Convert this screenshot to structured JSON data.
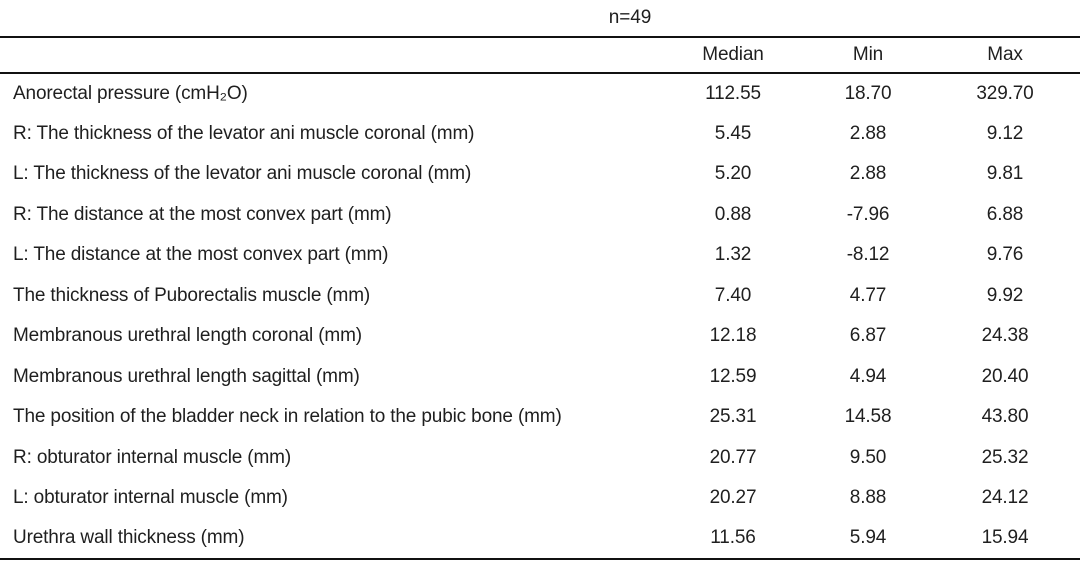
{
  "table": {
    "title": "n=49",
    "columns": [
      "Median",
      "Min",
      "Max"
    ],
    "rows": [
      {
        "label": "Anorectal pressure (cmH₂O)",
        "median": "112.55",
        "min": "18.70",
        "max": "329.70"
      },
      {
        "label": "R: The thickness of the levator ani muscle coronal (mm)",
        "median": "5.45",
        "min": "2.88",
        "max": "9.12"
      },
      {
        "label": "L: The thickness of the levator ani muscle coronal (mm)",
        "median": "5.20",
        "min": "2.88",
        "max": "9.81"
      },
      {
        "label": "R: The distance at the most convex part (mm)",
        "median": "0.88",
        "min": "-7.96",
        "max": "6.88"
      },
      {
        "label": "L: The distance at the most convex part (mm)",
        "median": "1.32",
        "min": "-8.12",
        "max": "9.76"
      },
      {
        "label": "The thickness of Puborectalis muscle (mm)",
        "median": "7.40",
        "min": "4.77",
        "max": "9.92"
      },
      {
        "label": "Membranous urethral length coronal (mm)",
        "median": "12.18",
        "min": "6.87",
        "max": "24.38"
      },
      {
        "label": "Membranous urethral length sagittal (mm)",
        "median": "12.59",
        "min": "4.94",
        "max": "20.40"
      },
      {
        "label": "The position of the bladder neck in relation to the pubic bone (mm)",
        "median": "25.31",
        "min": "14.58",
        "max": "43.80"
      },
      {
        "label": "R: obturator internal muscle (mm)",
        "median": "20.77",
        "min": "9.50",
        "max": "25.32"
      },
      {
        "label": "L: obturator internal muscle (mm)",
        "median": "20.27",
        "min": "8.88",
        "max": "24.12"
      },
      {
        "label": "Urethra wall thickness (mm)",
        "median": "11.56",
        "min": "5.94",
        "max": "15.94"
      }
    ]
  },
  "colors": {
    "text": "#1f1f1f",
    "rule": "#111111",
    "background": "#ffffff"
  }
}
